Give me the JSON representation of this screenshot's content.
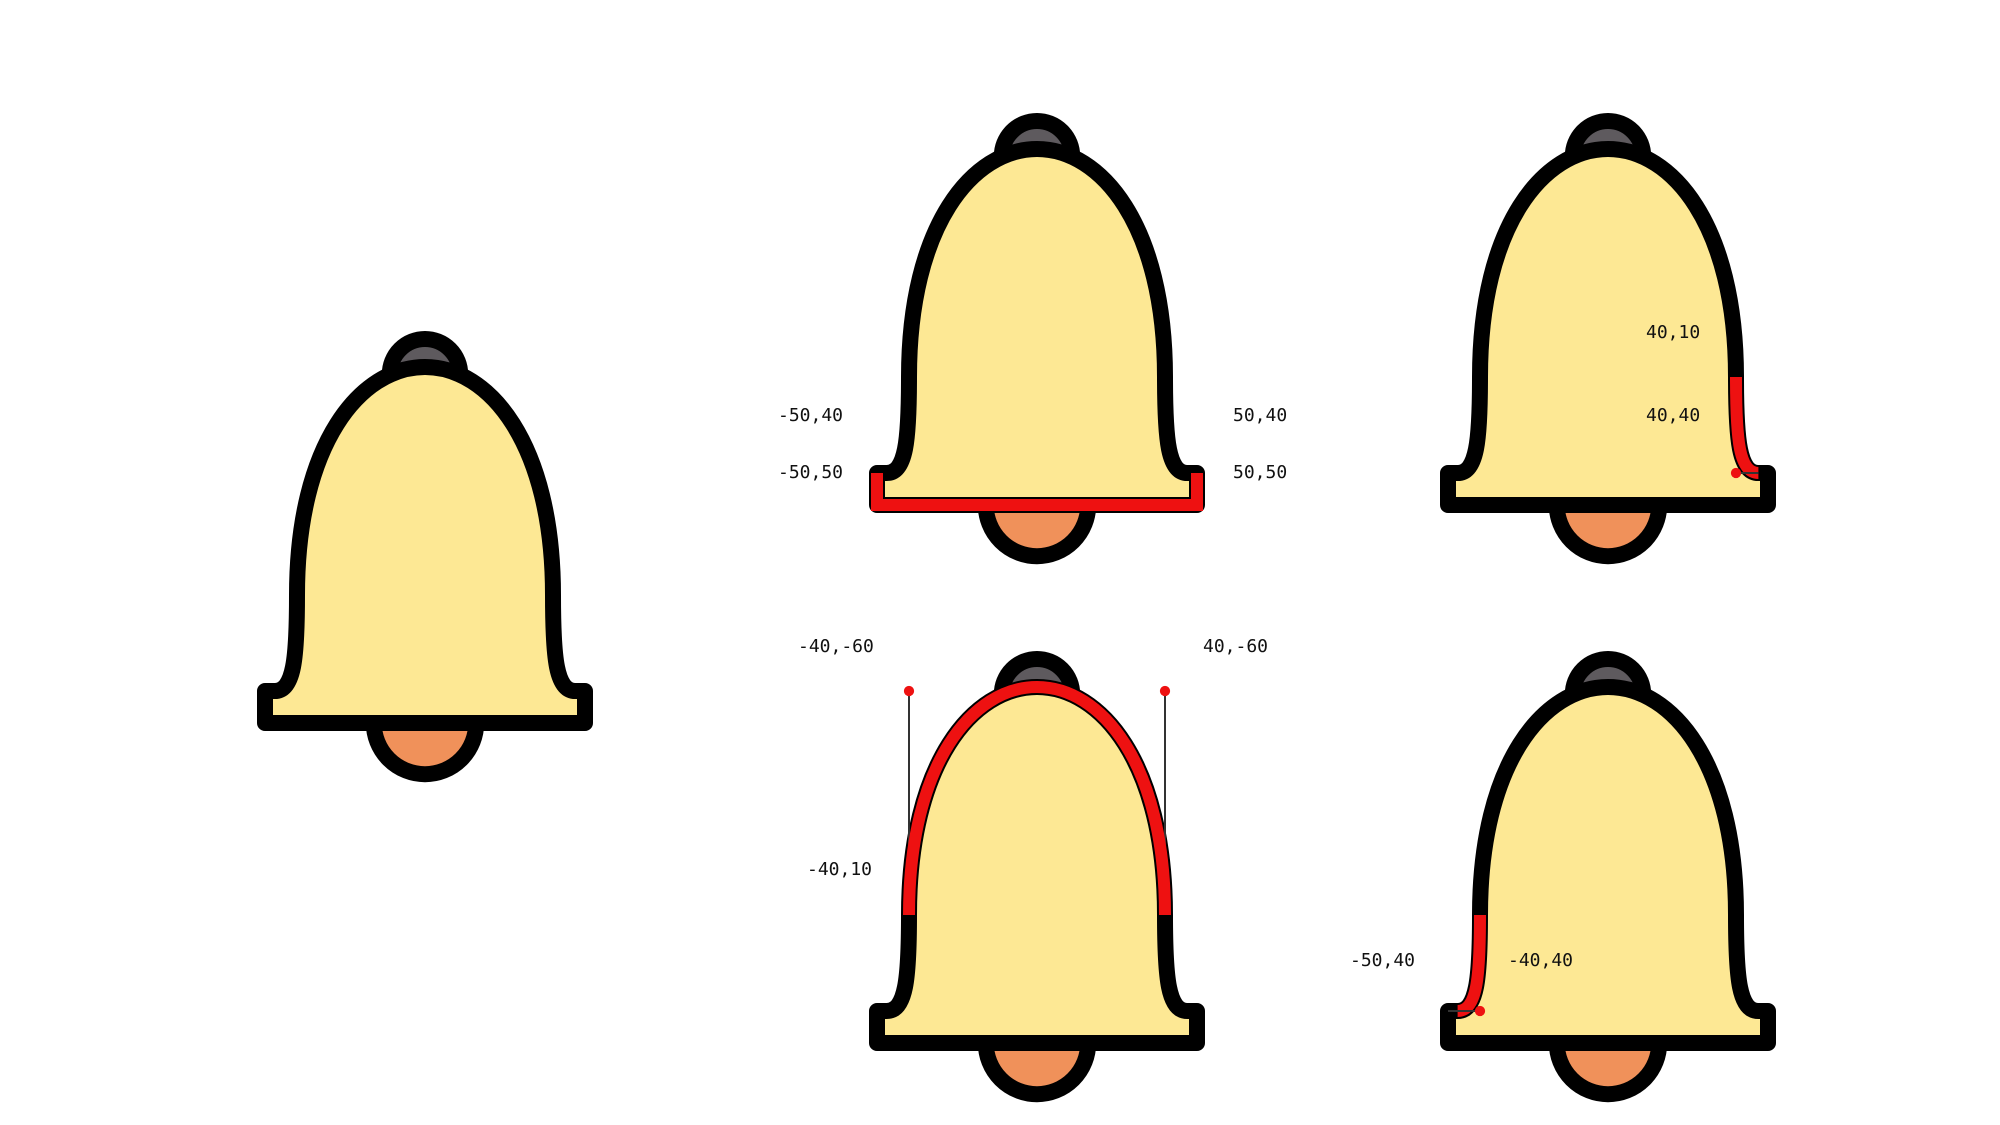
{
  "colors": {
    "bell_fill": "#fde894",
    "outline": "#000000",
    "knob": "#5e5a5e",
    "clapper": "#f0915a",
    "highlight": "#ee1111",
    "handle_line": "#333333"
  },
  "panels": {
    "full_bell": {},
    "bottom_rim": {
      "labels": {
        "top_left": "-50,40",
        "bottom_left": "-50,50",
        "top_right": "50,40",
        "bottom_right": "50,50"
      }
    },
    "right_flare": {
      "labels": {
        "top": "40,10",
        "bottom": "40,40"
      }
    },
    "dome_curve": {
      "labels": {
        "control_left": "-40,-60",
        "control_right": "40,-60",
        "start": "-40,10"
      }
    },
    "left_flare": {
      "labels": {
        "outer": "-50,40",
        "inner": "-40,40"
      }
    }
  }
}
